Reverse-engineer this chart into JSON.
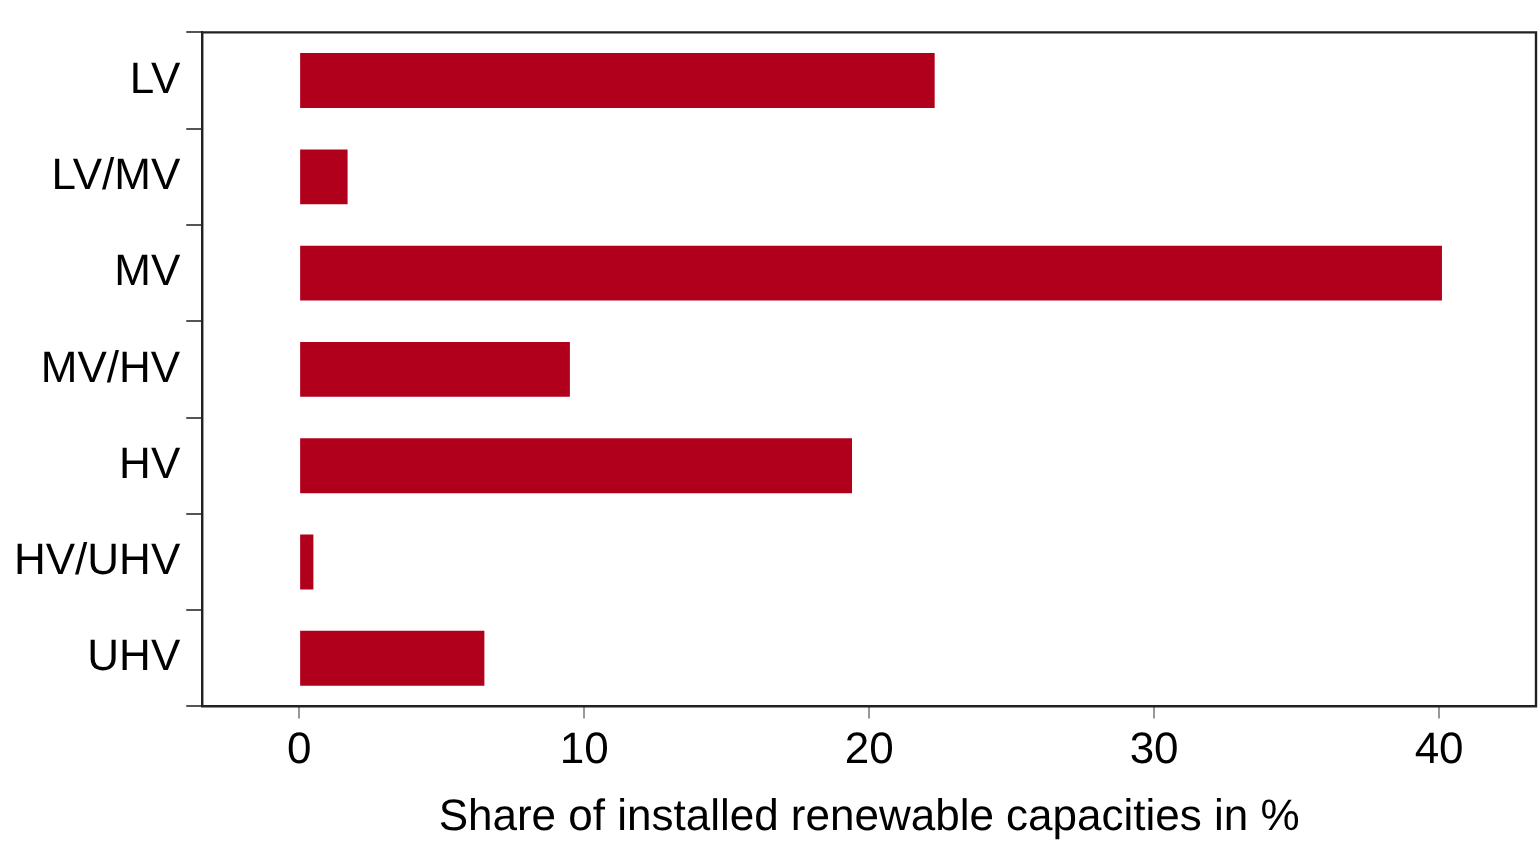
{
  "chart_data": {
    "type": "bar",
    "orientation": "horizontal",
    "xlabel": "Share of installed renewable capacities in %",
    "categories": [
      "LV",
      "LV/MV",
      "MV",
      "MV/HV",
      "HV",
      "HV/UHV",
      "UHV"
    ],
    "values": [
      22.3,
      1.7,
      40.1,
      9.5,
      19.4,
      0.5,
      6.5
    ],
    "color": "#b0001c",
    "xlim": [
      -3.4,
      43.4
    ],
    "xticks": [
      0,
      10,
      20,
      30,
      40
    ],
    "grid": false
  }
}
